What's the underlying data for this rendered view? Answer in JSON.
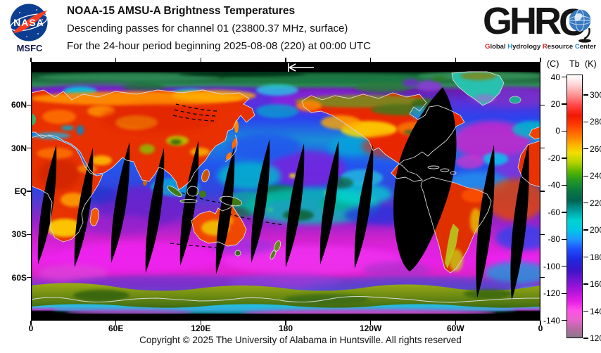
{
  "header": {
    "nasa": "NASA",
    "msfc": "MSFC",
    "title": "NOAA-15 AMSU-A Brightness Temperatures",
    "subtitle1": "Descending passes for channel 01 (23800.37 MHz, surface)",
    "subtitle2": "For the 24-hour period beginning 2025-08-08 (220) at 00:00 UTC"
  },
  "ghrc": {
    "letter_g": "G",
    "letter_h": "H",
    "letter_r": "R",
    "letter_c": "C",
    "subtitle_segments": [
      {
        "t": "G",
        "c": "#e02020"
      },
      {
        "t": "lobal ",
        "c": "#1a1a1a"
      },
      {
        "t": "H",
        "c": "#2090d0"
      },
      {
        "t": "ydrology ",
        "c": "#1a1a1a"
      },
      {
        "t": "R",
        "c": "#e02020"
      },
      {
        "t": "esource ",
        "c": "#1a1a1a"
      },
      {
        "t": "C",
        "c": "#2090d0"
      },
      {
        "t": "enter",
        "c": "#1a1a1a"
      }
    ]
  },
  "map": {
    "lat_labels": [
      "60N",
      "30N",
      "EQ",
      "30S",
      "60S"
    ],
    "lon_labels": [
      "0",
      "60E",
      "120E",
      "180",
      "120W",
      "60W",
      "0"
    ]
  },
  "colorbar": {
    "unit_left": "(C)",
    "label": "Tb",
    "unit_right": "(K)",
    "top_kelvin": 315,
    "bottom_kelvin": 120,
    "celsius_ticks": [
      40,
      20,
      0,
      -20,
      -40,
      -60,
      -80,
      -100,
      -120,
      -140
    ],
    "kelvin_ticks": [
      300,
      280,
      260,
      240,
      220,
      200,
      180,
      160,
      140,
      120
    ],
    "gradient_stops": [
      [
        0,
        "#ffffff"
      ],
      [
        3.6,
        "#ffd5d5"
      ],
      [
        7.7,
        "#ff9090"
      ],
      [
        11.8,
        "#ff4040"
      ],
      [
        15.4,
        "#f01800"
      ],
      [
        19,
        "#ff3c00"
      ],
      [
        23.1,
        "#ff7a00"
      ],
      [
        26.7,
        "#ffb400"
      ],
      [
        29.7,
        "#f0e000"
      ],
      [
        33.3,
        "#b4d200"
      ],
      [
        36.9,
        "#55b400"
      ],
      [
        40.5,
        "#1e9628"
      ],
      [
        44.1,
        "#0a7840"
      ],
      [
        47.7,
        "#006450"
      ],
      [
        51.8,
        "#00a0a0"
      ],
      [
        55.4,
        "#00d2d2"
      ],
      [
        59,
        "#00c8e6"
      ],
      [
        62.6,
        "#1e96ff"
      ],
      [
        66.2,
        "#1e50ff"
      ],
      [
        70.3,
        "#1e28dc"
      ],
      [
        74.4,
        "#3c14c8"
      ],
      [
        78.5,
        "#7814d2"
      ],
      [
        82.6,
        "#b414dc"
      ],
      [
        86.2,
        "#e61ee6"
      ],
      [
        89.7,
        "#ff50e6"
      ],
      [
        93.3,
        "#e664cc"
      ],
      [
        96.9,
        "#b46ba0"
      ],
      [
        100,
        "#8c7888"
      ]
    ]
  },
  "footer": {
    "copyright": "Copyright © 2025 The University of Alabama in Huntsville.  All rights reserved"
  },
  "chart_data": {
    "type": "heatmap",
    "title": "NOAA-15 AMSU-A Brightness Temperatures",
    "subtitle": [
      "Descending passes for channel 01 (23800.37 MHz, surface)",
      "For the 24-hour period beginning 2025-08-08 (220) at 00:00 UTC"
    ],
    "projection": "equirectangular world map, longitude 0E eastward around to 0E, latitude 90N to 90S",
    "x_tick_labels": [
      "0",
      "60E",
      "120E",
      "180",
      "120W",
      "60W",
      "0"
    ],
    "y_tick_labels": [
      "60N",
      "30N",
      "EQ",
      "30S",
      "60S"
    ],
    "colorbar": {
      "quantity": "Tb",
      "units_left": "C",
      "units_right": "K",
      "kelvin_range": [
        120,
        315
      ],
      "celsius_ticks": [
        40,
        20,
        0,
        -20,
        -40,
        -60,
        -80,
        -100,
        -120,
        -140
      ],
      "kelvin_ticks": [
        300,
        280,
        260,
        240,
        220,
        200,
        180,
        160,
        140,
        120
      ]
    },
    "features": [
      "Land masses (Eurasia, Africa, North America, Australia, Argentina) appear hot: red/orange/yellow, roughly 280-310 K",
      "Oceans appear cold at this window channel: blue/purple/cyan/magenta, roughly 140-220 K",
      "Arctic band dark green/teal; Antarctica olive-green band near 70S with white coastline",
      "Southern mid-latitude oceans bright magenta (about 140-155 K)",
      "About 13 narrow black lens-shaped inter-orbit coverage gaps between 35N and 50S, tilted, widest near the equator",
      "One large black missing-data swath from eastern North America (about 45N) through the Caribbean to a tip near 55S over western South America",
      "Thin white coastline overlay drawn over data and over black gaps",
      "Small white left-pointing arrow marker at top center of map (near 180 longitude)",
      "Short black dashed orbit-track segments near Kamchatka, the Philippines, and east of Australia"
    ]
  }
}
